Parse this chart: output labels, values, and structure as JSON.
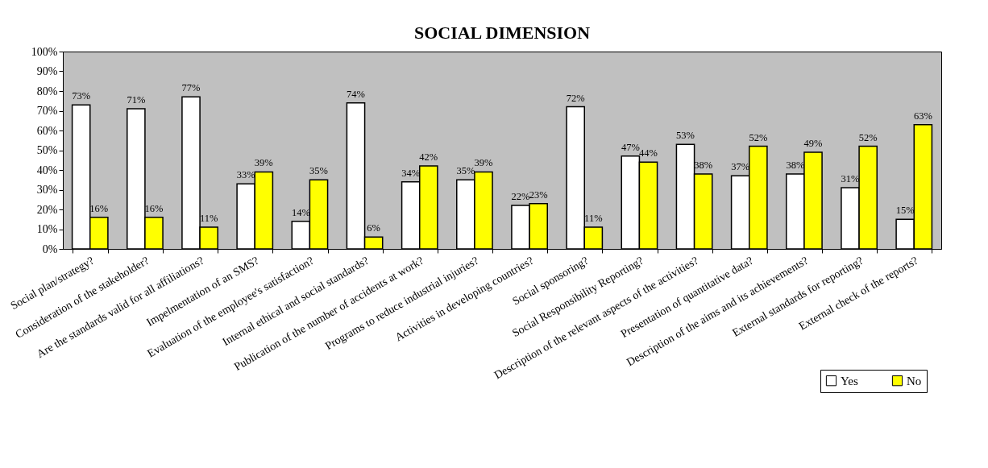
{
  "chart_data": {
    "type": "bar",
    "title": "SOCIAL DIMENSION",
    "categories": [
      "Social plan/strategy?",
      "Consideration of the stakeholder?",
      "Are the standards valid for all affiliations?",
      "Impelmentation of an SMS?",
      "Evaluation of the employee's satisfaction?",
      "Internal ethical and social standards?",
      "Publication of the number of  accidents at work?",
      "Programs to reduce industrial injuries?",
      "Activities in developing countries?",
      "Social sponsoring?",
      "Social Responsibility Reporting?",
      "Description of the relevant aspects of the activities?",
      "Presentation of quantitative data?",
      "Description of the aims and its achievements?",
      "External standards for reporting?",
      "External check of the reports?"
    ],
    "series": [
      {
        "name": "Yes",
        "color": "#ffffff",
        "values": [
          73,
          71,
          77,
          33,
          14,
          74,
          34,
          35,
          22,
          72,
          47,
          53,
          37,
          38,
          31,
          15
        ],
        "value_labels": [
          "73%",
          "71%",
          "77%",
          "33%",
          "14%",
          "74%",
          "34%",
          "35%",
          "22%",
          "72%",
          "47%",
          "53%",
          "37%",
          "38%",
          "31%",
          "15%"
        ]
      },
      {
        "name": "No",
        "color": "#ffff00",
        "values": [
          16,
          16,
          11,
          39,
          35,
          6,
          42,
          39,
          23,
          11,
          44,
          38,
          52,
          49,
          52,
          63
        ],
        "value_labels": [
          "16%",
          "16%",
          "11%",
          "39%",
          "35%",
          "6%",
          "42%",
          "39%",
          "23%",
          "11%",
          "44%",
          "38%",
          "52%",
          "49%",
          "52%",
          "63%"
        ]
      }
    ],
    "ylim": [
      0,
      100
    ],
    "yticks": [
      {
        "value": 0,
        "label": "0%"
      },
      {
        "value": 10,
        "label": "10%"
      },
      {
        "value": 20,
        "label": "20%"
      },
      {
        "value": 30,
        "label": "30%"
      },
      {
        "value": 40,
        "label": "40%"
      },
      {
        "value": 50,
        "label": "50%"
      },
      {
        "value": 60,
        "label": "60%"
      },
      {
        "value": 70,
        "label": "70%"
      },
      {
        "value": 80,
        "label": "80%"
      },
      {
        "value": 90,
        "label": "90%"
      },
      {
        "value": 100,
        "label": "100%"
      }
    ],
    "grid": false,
    "legend": "bottom right"
  }
}
